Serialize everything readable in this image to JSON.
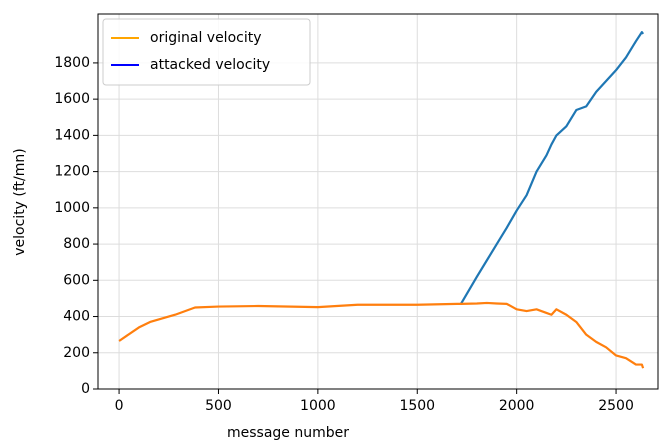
{
  "chart_data": {
    "type": "line",
    "xlabel": "message number",
    "ylabel": "velocity (ft/mn)",
    "x": [
      0,
      100,
      156,
      282,
      382,
      500,
      700,
      1000,
      1200,
      1500,
      1700,
      1720,
      1800,
      1850,
      1900,
      1950,
      2000,
      2050,
      2100,
      2150,
      2175,
      2200,
      2250,
      2300,
      2350,
      2400,
      2450,
      2500,
      2550,
      2600,
      2630,
      2636
    ],
    "series": [
      {
        "name": "original velocity",
        "color": "#ff7f0e",
        "legend_color": "#ffa500",
        "values": [
          265,
          340,
          370,
          410,
          450,
          455,
          458,
          452,
          465,
          465,
          470,
          470,
          472,
          475,
          472,
          470,
          440,
          430,
          440,
          420,
          410,
          440,
          410,
          370,
          300,
          260,
          230,
          185,
          170,
          135,
          135,
          115
        ]
      },
      {
        "name": "attacked velocity",
        "color": "#1f77b4",
        "legend_color": "#0000ff",
        "values": [
          null,
          null,
          null,
          null,
          null,
          null,
          null,
          null,
          null,
          null,
          null,
          470,
          620,
          710,
          800,
          890,
          985,
          1070,
          1200,
          1290,
          1350,
          1400,
          1450,
          1540,
          1560,
          1640,
          1700,
          1760,
          1830,
          1920,
          1970,
          1960
        ]
      }
    ],
    "xlim": [
      -106,
      2711
    ],
    "ylim": [
      0,
      2070
    ],
    "xticks": [
      0,
      500,
      1000,
      1500,
      2000,
      2500
    ],
    "yticks": [
      0,
      200,
      400,
      600,
      800,
      1000,
      1200,
      1400,
      1600,
      1800
    ],
    "grid": true,
    "legend": "upper left"
  }
}
